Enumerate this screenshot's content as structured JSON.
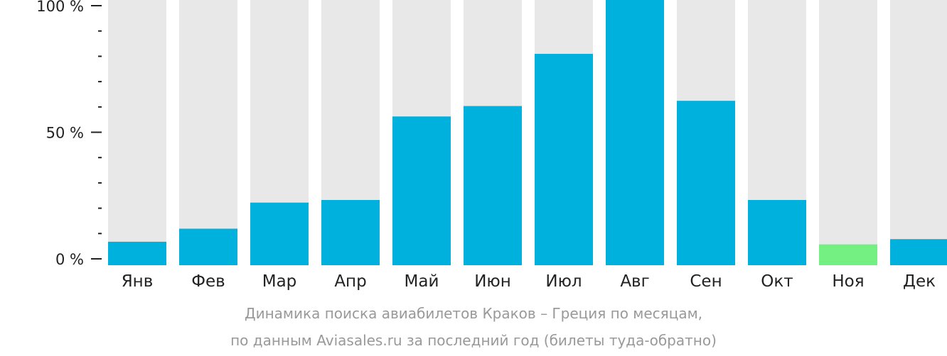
{
  "chart_data": {
    "type": "bar",
    "categories": [
      "Янв",
      "Фев",
      "Мар",
      "Апр",
      "Май",
      "Июн",
      "Июл",
      "Авг",
      "Сен",
      "Окт",
      "Ноя",
      "Дек"
    ],
    "values": [
      9,
      14,
      24,
      25,
      57,
      61,
      81,
      100,
      63,
      25,
      8,
      10
    ],
    "highlight_index": 10,
    "ylim": [
      0,
      100
    ],
    "yticks": [
      {
        "value": 0,
        "label": "0 %"
      },
      {
        "value": 50,
        "label": "50 %"
      },
      {
        "value": 100,
        "label": "100 %"
      }
    ],
    "minor_tick_step": 10,
    "colors": {
      "bar": "#00b0dd",
      "highlight": "#74f083",
      "track": "#e8e8e8",
      "axis": "#222222"
    },
    "caption_line1": "Динамика поиска авиабилетов Краков – Греция по месяцам,",
    "caption_line2": "по данным Aviasales.ru за последний год (билеты туда-обратно)"
  }
}
